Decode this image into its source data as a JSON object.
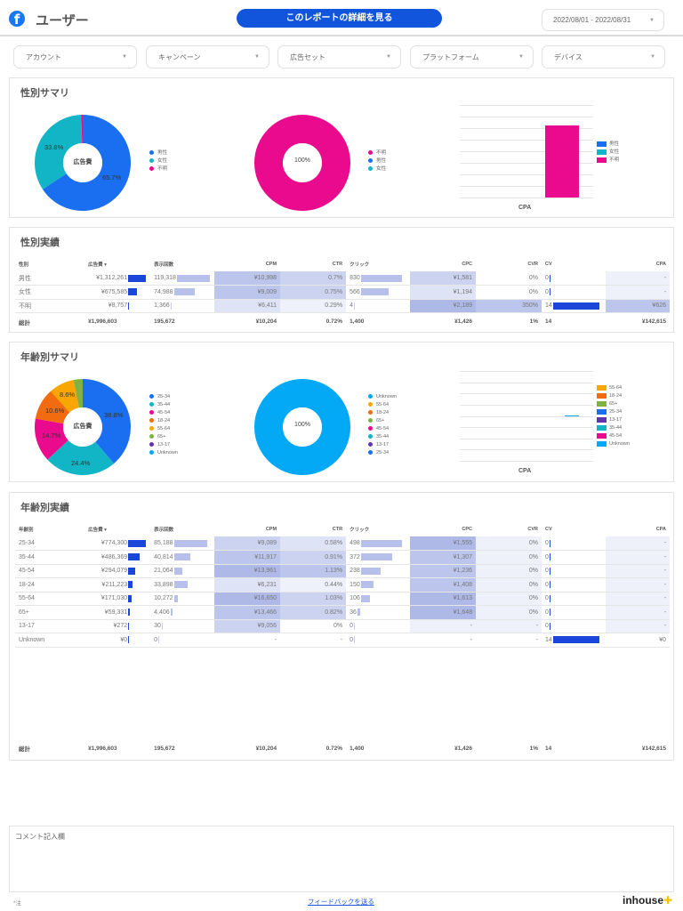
{
  "header": {
    "title": "ユーザー",
    "report_button": "このレポートの詳細を見る",
    "date_range": "2022/08/01 - 2022/08/31"
  },
  "filters": [
    "アカウント",
    "キャンペーン",
    "広告セット",
    "プラットフォーム",
    "デバイス"
  ],
  "colors": {
    "male": "#1a6ef0",
    "female": "#12b5c5",
    "unknown_gender": "#ea0a8e",
    "age_25_34": "#1a6ef0",
    "age_35_44": "#12b5c5",
    "age_45_54": "#ea0a8e",
    "age_18_24": "#f26b0f",
    "age_55_64": "#f9a602",
    "age_65p": "#7cb342",
    "age_13_17": "#5e35b1",
    "age_unknown": "#03a9f4",
    "accent_button": "#1155dd",
    "table_bar_dark": "#1a47d9",
    "table_bar_light": "#b6c0ea"
  },
  "gender_summary": {
    "title": "性別サマリ",
    "donut1": {
      "center_label": "広告費",
      "slices": [
        {
          "label": "男性",
          "value": 65.7,
          "display": "65.7%"
        },
        {
          "label": "女性",
          "value": 33.8,
          "display": "33.8%"
        },
        {
          "label": "不明",
          "value": 0.5,
          "display": ""
        }
      ],
      "legend": [
        "男性",
        "女性",
        "不明"
      ]
    },
    "donut2": {
      "center_label": "100%",
      "slices": [
        {
          "label": "不明",
          "value": 100
        }
      ],
      "legend": [
        "不明",
        "男性",
        "女性"
      ]
    },
    "bar": {
      "xlabel": "CPA",
      "series": [
        {
          "name": "男性",
          "value": 0
        },
        {
          "name": "女性",
          "value": 0
        },
        {
          "name": "不明",
          "value": 626
        }
      ],
      "ymax": 800,
      "legend": [
        "男性",
        "女性",
        "不明"
      ]
    }
  },
  "gender_table": {
    "title": "性別実績",
    "columns": [
      "性別",
      "広告費 ▾",
      "表示回数",
      "CPM",
      "CTR",
      "クリック",
      "CPC",
      "CVR",
      "CV",
      "CPA"
    ],
    "rows": [
      {
        "name": "男性",
        "spend": "¥1,312,261",
        "spend_ratio": 1.0,
        "imp": "119,318",
        "imp_ratio": 1.0,
        "cpm": "¥10,998",
        "ctr": "0.7%",
        "clicks": "830",
        "click_ratio": 1.0,
        "cpc": "¥1,581",
        "cvr": "0%",
        "cv": "0",
        "cv_ratio": 0,
        "cpa": "-"
      },
      {
        "name": "女性",
        "spend": "¥675,585",
        "spend_ratio": 0.51,
        "imp": "74,988",
        "imp_ratio": 0.63,
        "cpm": "¥9,009",
        "ctr": "0.75%",
        "clicks": "566",
        "click_ratio": 0.68,
        "cpc": "¥1,194",
        "cvr": "0%",
        "cv": "0",
        "cv_ratio": 0,
        "cpa": "-"
      },
      {
        "name": "不明",
        "spend": "¥8,757",
        "spend_ratio": 0.01,
        "imp": "1,366",
        "imp_ratio": 0.01,
        "cpm": "¥6,411",
        "ctr": "0.29%",
        "clicks": "4",
        "click_ratio": 0.005,
        "cpc": "¥2,189",
        "cvr": "350%",
        "cv": "14",
        "cv_ratio": 1.0,
        "cpa": "¥626"
      }
    ],
    "total": {
      "name": "総計",
      "spend": "¥1,996,603",
      "imp": "195,672",
      "cpm": "¥10,204",
      "ctr": "0.72%",
      "clicks": "1,400",
      "cpc": "¥1,426",
      "cvr": "1%",
      "cv": "14",
      "cpa": "¥142,615"
    }
  },
  "age_summary": {
    "title": "年齢別サマリ",
    "donut1": {
      "center_label": "広告費",
      "slices": [
        {
          "label": "25-34",
          "value": 38.8,
          "display": "38.8%"
        },
        {
          "label": "35-44",
          "value": 24.4,
          "display": "24.4%"
        },
        {
          "label": "45-54",
          "value": 14.7,
          "display": "14.7%"
        },
        {
          "label": "18-24",
          "value": 10.6,
          "display": "10.6%"
        },
        {
          "label": "55-64",
          "value": 8.6,
          "display": "8.6%"
        },
        {
          "label": "65+",
          "value": 3.0,
          "display": ""
        },
        {
          "label": "13-17",
          "value": 0.01,
          "display": ""
        },
        {
          "label": "Unknown",
          "value": 0,
          "display": ""
        }
      ],
      "legend": [
        "25-34",
        "35-44",
        "45-54",
        "18-24",
        "55-64",
        "65+",
        "13-17",
        "Unknown"
      ]
    },
    "donut2": {
      "center_label": "100%",
      "slices": [
        {
          "label": "Unknown",
          "value": 100
        }
      ],
      "legend": [
        "Unknown",
        "55-64",
        "18-24",
        "65+",
        "45-54",
        "35-44",
        "13-17",
        "25-34"
      ]
    },
    "bar": {
      "xlabel": "CPA",
      "series": [
        {
          "name": "Unknown",
          "value": 0
        }
      ],
      "legend": [
        "55-64",
        "18-24",
        "65+",
        "25-34",
        "13-17",
        "35-44",
        "45-54",
        "Unknown"
      ]
    }
  },
  "age_table": {
    "title": "年齢別実績",
    "columns": [
      "年齢別",
      "広告費 ▾",
      "表示回数",
      "CPM",
      "CTR",
      "クリック",
      "CPC",
      "CVR",
      "CV",
      "CPA"
    ],
    "rows": [
      {
        "name": "25-34",
        "spend": "¥774,300",
        "spend_ratio": 1.0,
        "imp": "85,188",
        "imp_ratio": 1.0,
        "cpm": "¥9,089",
        "ctr": "0.58%",
        "clicks": "498",
        "click_ratio": 1.0,
        "cpc": "¥1,555",
        "cvr": "0%",
        "cv": "0",
        "cv_ratio": 0,
        "cpa": "-"
      },
      {
        "name": "35-44",
        "spend": "¥486,369",
        "spend_ratio": 0.63,
        "imp": "40,814",
        "imp_ratio": 0.48,
        "cpm": "¥11,917",
        "ctr": "0.91%",
        "clicks": "372",
        "click_ratio": 0.75,
        "cpc": "¥1,307",
        "cvr": "0%",
        "cv": "0",
        "cv_ratio": 0,
        "cpa": "-"
      },
      {
        "name": "45-54",
        "spend": "¥294,079",
        "spend_ratio": 0.38,
        "imp": "21,064",
        "imp_ratio": 0.25,
        "cpm": "¥13,961",
        "ctr": "1.13%",
        "clicks": "238",
        "click_ratio": 0.48,
        "cpc": "¥1,236",
        "cvr": "0%",
        "cv": "0",
        "cv_ratio": 0,
        "cpa": "-"
      },
      {
        "name": "18-24",
        "spend": "¥211,223",
        "spend_ratio": 0.27,
        "imp": "33,898",
        "imp_ratio": 0.4,
        "cpm": "¥6,231",
        "ctr": "0.44%",
        "clicks": "150",
        "click_ratio": 0.3,
        "cpc": "¥1,408",
        "cvr": "0%",
        "cv": "0",
        "cv_ratio": 0,
        "cpa": "-"
      },
      {
        "name": "55-64",
        "spend": "¥171,030",
        "spend_ratio": 0.22,
        "imp": "10,272",
        "imp_ratio": 0.12,
        "cpm": "¥16,650",
        "ctr": "1.03%",
        "clicks": "106",
        "click_ratio": 0.21,
        "cpc": "¥1,613",
        "cvr": "0%",
        "cv": "0",
        "cv_ratio": 0,
        "cpa": "-"
      },
      {
        "name": "65+",
        "spend": "¥59,331",
        "spend_ratio": 0.08,
        "imp": "4,406",
        "imp_ratio": 0.05,
        "cpm": "¥13,466",
        "ctr": "0.82%",
        "clicks": "36",
        "click_ratio": 0.07,
        "cpc": "¥1,648",
        "cvr": "0%",
        "cv": "0",
        "cv_ratio": 0,
        "cpa": "-"
      },
      {
        "name": "13-17",
        "spend": "¥272",
        "spend_ratio": 0.003,
        "imp": "30",
        "imp_ratio": 0.003,
        "cpm": "¥9,056",
        "ctr": "0%",
        "clicks": "0",
        "click_ratio": 0,
        "cpc": "-",
        "cvr": "-",
        "cv": "0",
        "cv_ratio": 0,
        "cpa": "-"
      },
      {
        "name": "Unknown",
        "spend": "¥0",
        "spend_ratio": 0.003,
        "imp": "0",
        "imp_ratio": 0.003,
        "cpm": "-",
        "ctr": "-",
        "clicks": "0",
        "click_ratio": 0,
        "cpc": "-",
        "cvr": "-",
        "cv": "14",
        "cv_ratio": 1.0,
        "cpa": "¥0"
      }
    ],
    "total": {
      "name": "総計",
      "spend": "¥1,996,603",
      "imp": "195,672",
      "cpm": "¥10,204",
      "ctr": "0.72%",
      "clicks": "1,400",
      "cpc": "¥1,426",
      "cvr": "1%",
      "cv": "14",
      "cpa": "¥142,615"
    }
  },
  "comment": {
    "label": "コメント記入欄"
  },
  "footer": {
    "note": "*注",
    "feedback": "フィードバックを送る",
    "logo": "inhouse"
  }
}
